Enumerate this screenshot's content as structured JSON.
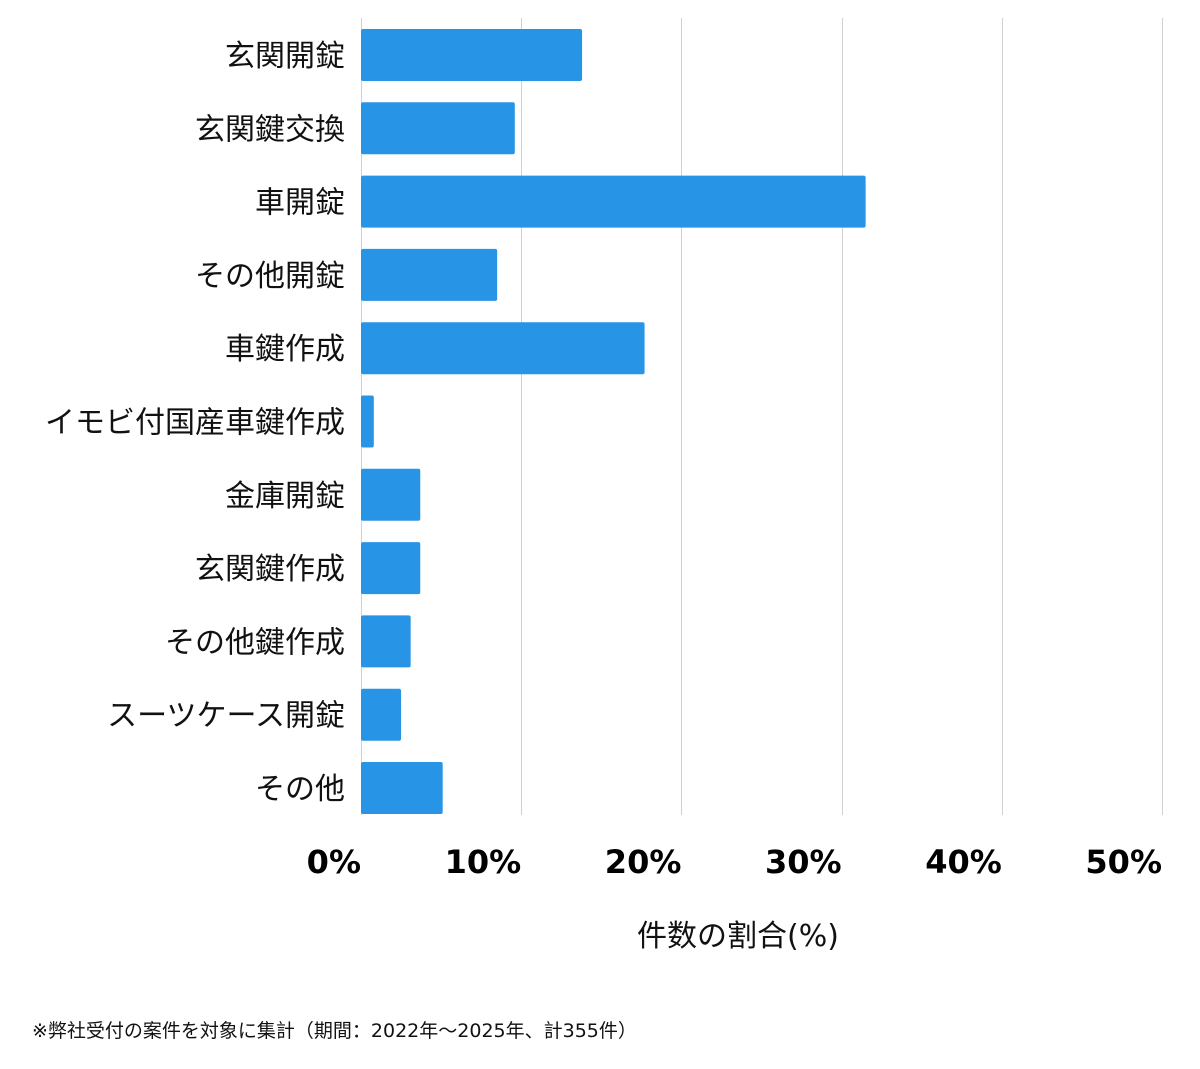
{
  "chart_data": {
    "type": "bar",
    "orientation": "horizontal",
    "categories": [
      "玄関開錠",
      "玄関鍵交換",
      "車開錠",
      "その他開錠",
      "車鍵作成",
      "イモビ付国産車鍵作成",
      "金庫開錠",
      "玄関鍵作成",
      "その他鍵作成",
      "スーツケース開錠",
      "その他"
    ],
    "values": [
      13.8,
      9.6,
      31.5,
      8.5,
      17.7,
      0.8,
      3.7,
      3.7,
      3.1,
      2.5,
      5.1
    ],
    "xlabel": "件数の割合(%)",
    "ylabel": "",
    "xlim": [
      0,
      50
    ],
    "x_ticks": [
      0,
      10,
      20,
      30,
      40,
      50
    ],
    "x_tick_labels": [
      "0%",
      "10%",
      "20%",
      "30%",
      "40%",
      "50%"
    ],
    "grid": true,
    "bar_color": "#2794e6"
  },
  "footnote": "※弊社受付の案件を対象に集計（期間：2022年〜2025年、計355件）"
}
